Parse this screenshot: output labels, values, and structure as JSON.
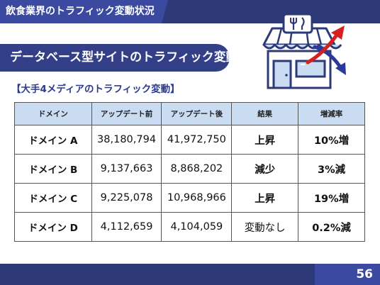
{
  "header": {
    "title": "飲食業界のトラフィック変動状況"
  },
  "banner": {
    "title": "データベース型サイトのトラフィック変動"
  },
  "subheading": "【大手4メディアのトラフィック変動】",
  "table": {
    "columns": [
      "ドメイン",
      "アップデート前",
      "アップデート後",
      "結果",
      "増減率"
    ],
    "rows": [
      {
        "domain": "ドメイン A",
        "before": "38,180,794",
        "after": "41,972,750",
        "result": "上昇",
        "rate": "10%増",
        "trend": "up"
      },
      {
        "domain": "ドメイン B",
        "before": "9,137,663",
        "after": "8,868,202",
        "result": "減少",
        "rate": "3%減",
        "trend": "down"
      },
      {
        "domain": "ドメイン C",
        "before": "9,225,078",
        "after": "10,968,966",
        "result": "上昇",
        "rate": "19%増",
        "trend": "up"
      },
      {
        "domain": "ドメイン D",
        "before": "4,112,659",
        "after": "4,104,059",
        "result": "変動なし",
        "rate": "0.2%減",
        "trend": "flat"
      }
    ]
  },
  "footer": {
    "page_number": "56"
  },
  "colors": {
    "navy": "#2e3a78",
    "accent_blue": "#3b4aa0",
    "header_cell": "#c9dcf2",
    "up_red": "#d62020",
    "down_blue": "#2a3a9a"
  },
  "icons": [
    "store-icon",
    "fork-knife-icon",
    "trend-arrow-up-icon",
    "trend-arrow-down-icon"
  ]
}
